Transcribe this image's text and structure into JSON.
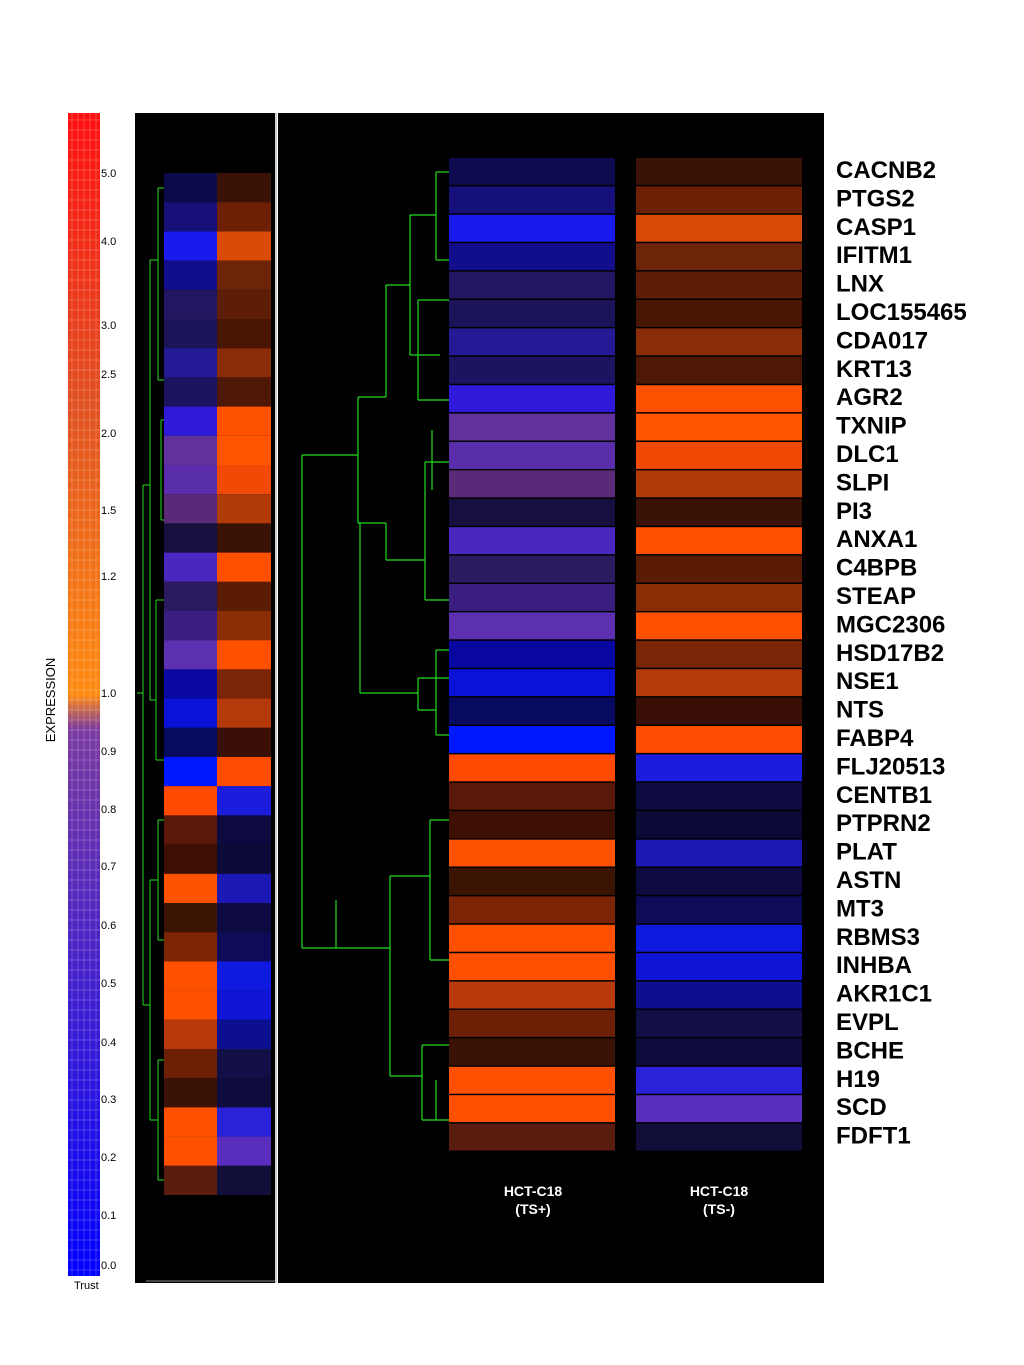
{
  "chart_data": {
    "type": "heatmap",
    "title": "",
    "color_scale": {
      "label": "EXPRESSION",
      "footer": "Trust",
      "ticks": [
        "0.0",
        "0.1",
        "0.2",
        "0.3",
        "0.4",
        "0.5",
        "0.6",
        "0.7",
        "0.8",
        "0.9",
        "1.0",
        "1.2",
        "1.5",
        "2.0",
        "2.5",
        "3.0",
        "4.0",
        "5.0"
      ],
      "low_color": "#0000ff",
      "mid_color": "#ff8000",
      "high_color": "#ff0000"
    },
    "columns": [
      {
        "name": "HCT-C18",
        "sub": "(TS+)"
      },
      {
        "name": "HCT-C18",
        "sub": "(TS-)"
      }
    ],
    "genes": [
      "CACNB2",
      "PTGS2",
      "CASP1",
      "IFITM1",
      "LNX",
      "LOC155465",
      "CDA017",
      "KRT13",
      "AGR2",
      "TXNIP",
      "DLC1",
      "SLPI",
      "PI3",
      "ANXA1",
      "C4BPB",
      "STEAP",
      "MGC2306",
      "HSD17B2",
      "NSE1",
      "NTS",
      "FABP4",
      "FLJ20513",
      "CENTB1",
      "PTPRN2",
      "PLAT",
      "ASTN",
      "MT3",
      "RBMS3",
      "INHBA",
      "AKR1C1",
      "EVPL",
      "BCHE",
      "H19",
      "SCD",
      "FDFT1"
    ],
    "cell_colors_ts_plus": [
      "#0d0a50",
      "#16107a",
      "#1a1aee",
      "#120d8a",
      "#221660",
      "#1c1458",
      "#241a96",
      "#1c1460",
      "#2e1ad8",
      "#62329c",
      "#5a2eaa",
      "#592a78",
      "#16103e",
      "#4a28c0",
      "#2c1a60",
      "#3a1e80",
      "#5c30b0",
      "#0808a0",
      "#0a12d8",
      "#080a60",
      "#0018ff",
      "#ff4a00",
      "#5a1808",
      "#3e1004",
      "#ff5200",
      "#3c1404",
      "#7c2404",
      "#ff5000",
      "#ff5000",
      "#b83a0c",
      "#6e2006",
      "#3a1206",
      "#ff5000",
      "#ff5000",
      "#5a1c0e"
    ],
    "cell_colors_ts_minus": [
      "#3a1206",
      "#6e2006",
      "#d84a06",
      "#6e2408",
      "#5e1e06",
      "#4a1604",
      "#8a2c08",
      "#4e1804",
      "#ff5200",
      "#ff5400",
      "#f04a06",
      "#b03a08",
      "#3a1206",
      "#ff5000",
      "#5a1c04",
      "#8a2c04",
      "#ff5000",
      "#7a2606",
      "#b43a0c",
      "#3a1006",
      "#ff4c00",
      "#1c1cdc",
      "#0c0a3e",
      "#0c0a36",
      "#1c18b4",
      "#0c0a40",
      "#0e0c58",
      "#0e1ae0",
      "#1014d4",
      "#0c1090",
      "#120e46",
      "#0e0c3c",
      "#2a22d8",
      "#5a2ebc",
      "#120e3a"
    ],
    "left_panel_ts_plus": [
      "#0c0a4a",
      "#161078",
      "#1a1aee",
      "#120d8a",
      "#221660",
      "#1c1458",
      "#241a96",
      "#1c1460",
      "#2e1ad8",
      "#62329c",
      "#5a2eaa",
      "#592a78",
      "#16103e",
      "#4a28c0",
      "#2c1a60",
      "#3a1e80",
      "#5c30b0",
      "#0808a0",
      "#0a12d8",
      "#080a60",
      "#0018ff",
      "#ff4a00",
      "#5a1808",
      "#3e1004",
      "#ff5200",
      "#3c1404",
      "#7c2404",
      "#ff5000",
      "#ff5000",
      "#b83a0c",
      "#6e2006",
      "#3a1206",
      "#ff5000",
      "#ff5000",
      "#5a1c0e"
    ],
    "left_panel_ts_minus": [
      "#3a1206",
      "#6e2006",
      "#d84a06",
      "#6e2408",
      "#5e1e06",
      "#4a1604",
      "#8a2c08",
      "#4e1804",
      "#ff5200",
      "#ff5400",
      "#f04a06",
      "#b03a08",
      "#3a1206",
      "#ff5000",
      "#5a1c04",
      "#8a2c04",
      "#ff5000",
      "#7a2606",
      "#b43a0c",
      "#3a1006",
      "#ff4c00",
      "#1c1cdc",
      "#0c0a3e",
      "#0c0a36",
      "#1c18b4",
      "#0c0a40",
      "#0e0c58",
      "#0e1ae0",
      "#1014d4",
      "#0c1090",
      "#120e46",
      "#0e0c3c",
      "#2a22d8",
      "#5a2ebc",
      "#120e3a"
    ],
    "dendrogram_color": "#22dd22"
  }
}
